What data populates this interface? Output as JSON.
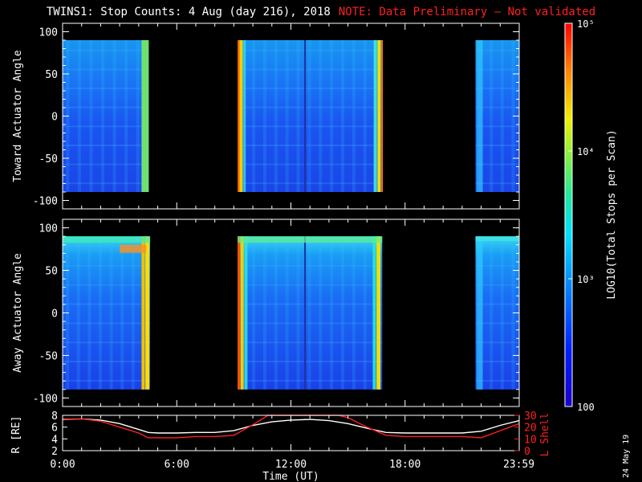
{
  "title": {
    "main": "TWINS1: Stop Counts:  4 Aug (day 216), 2018",
    "note": "NOTE: Data Preliminary — Not validated",
    "note_color": "#ff2020"
  },
  "side_date": "24 May 19",
  "chart_data": [
    {
      "type": "heatmap",
      "panel": "top",
      "ylabel": "Toward Actuator Angle",
      "ylim": [
        -110,
        110
      ],
      "yticks": [
        100,
        50,
        0,
        -50,
        -100
      ],
      "data_yrange": [
        -90,
        90
      ],
      "xlim": [
        0,
        24
      ],
      "data_segments": [
        {
          "start": 0.0,
          "end": 4.3
        },
        {
          "start": 9.2,
          "end": 16.8
        },
        {
          "start": 21.7,
          "end": 24.0
        }
      ],
      "colorbar_label": "LOG10(Total Stops per Scan)",
      "colorbar_range": [
        100,
        100000
      ],
      "colorbar_ticks": [
        "10⁵",
        "10⁴",
        "10³",
        "100"
      ],
      "colorscale": "rainbow",
      "grid": false
    },
    {
      "type": "heatmap",
      "panel": "middle",
      "ylabel": "Away Actuator Angle",
      "ylim": [
        -110,
        110
      ],
      "yticks": [
        100,
        50,
        0,
        -50,
        -100
      ],
      "data_yrange": [
        -90,
        90
      ],
      "xlim": [
        0,
        24
      ],
      "data_segments": [
        {
          "start": 0.0,
          "end": 4.6
        },
        {
          "start": 9.2,
          "end": 16.8
        },
        {
          "start": 21.7,
          "end": 24.0
        }
      ],
      "colorscale": "rainbow",
      "grid": false
    },
    {
      "type": "line",
      "panel": "bottom",
      "xlabel": "Time (UT)",
      "xlim": [
        0,
        24
      ],
      "xtick_labels": [
        "0:00",
        "6:00",
        "12:00",
        "18:00",
        "23:59"
      ],
      "xtick_values": [
        0,
        6,
        12,
        18,
        23.98
      ],
      "ylabel_left": "R [RE]",
      "ylim_left": [
        2,
        8
      ],
      "yticks_left": [
        2,
        4,
        6,
        8
      ],
      "ylabel_right": "L Shell",
      "ylim_right": [
        0,
        30
      ],
      "yticks_right": [
        0,
        10,
        20,
        30
      ],
      "series": [
        {
          "axis": "left",
          "color": "#ffffff",
          "x": [
            0.0,
            1.0,
            2.0,
            3.0,
            4.0,
            4.5,
            5.0,
            6.0,
            7.0,
            8.0,
            9.0,
            10.0,
            11.0,
            12.0,
            13.0,
            14.0,
            15.0,
            16.0,
            17.0,
            18.0,
            19.0,
            20.0,
            21.0,
            22.0,
            23.0,
            24.0
          ],
          "values": [
            7.3,
            7.4,
            7.2,
            6.6,
            5.6,
            5.1,
            5.0,
            5.0,
            5.1,
            5.1,
            5.4,
            6.3,
            6.9,
            7.2,
            7.3,
            7.1,
            6.6,
            5.8,
            5.1,
            5.0,
            5.0,
            5.0,
            5.0,
            5.3,
            6.3,
            7.1
          ]
        },
        {
          "axis": "right",
          "color": "#ff2020",
          "x": [
            0.0,
            1.0,
            2.0,
            3.0,
            4.0,
            4.5,
            5.0,
            6.0,
            7.0,
            8.0,
            9.0,
            10.0,
            10.8,
            11.0,
            14.5,
            15.0,
            16.0,
            17.0,
            18.0,
            19.0,
            20.0,
            21.0,
            22.0,
            23.0,
            24.0
          ],
          "values": [
            27,
            27,
            25,
            20,
            15,
            11,
            11,
            11,
            12,
            12,
            13,
            22,
            30,
            30,
            30,
            28,
            20,
            13,
            12,
            12,
            12,
            12,
            11,
            17,
            23
          ]
        }
      ]
    }
  ]
}
